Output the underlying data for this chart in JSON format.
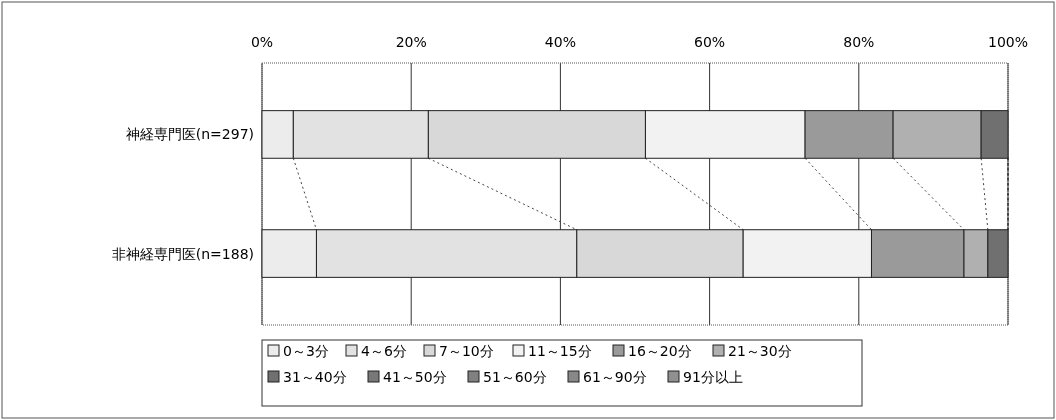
{
  "chart_data": {
    "type": "bar",
    "orientation": "horizontal",
    "stacked": true,
    "categories": [
      "神経専門医(n=297)",
      "非神経専門医(n=188)"
    ],
    "series": [
      {
        "name": "0～3分",
        "color": "#ececec",
        "values": [
          4.2,
          7.3
        ]
      },
      {
        "name": "4～6分",
        "color": "#e2e2e2",
        "values": [
          18.1,
          34.9
        ]
      },
      {
        "name": "7～10分",
        "color": "#d8d8d8",
        "values": [
          29.1,
          22.3
        ]
      },
      {
        "name": "11～15分",
        "color": "#f2f2f2",
        "values": [
          21.4,
          17.2
        ]
      },
      {
        "name": "16～20分",
        "color": "#9a9a9a",
        "values": [
          11.8,
          12.4
        ]
      },
      {
        "name": "21～30分",
        "color": "#b0b0b0",
        "values": [
          11.8,
          3.2
        ]
      },
      {
        "name": "31～40分",
        "color": "#707070",
        "values": [
          3.6,
          2.7
        ]
      },
      {
        "name": "41～50分",
        "color": "#787878",
        "values": [
          0,
          0
        ]
      },
      {
        "name": "51～60分",
        "color": "#808080",
        "values": [
          0,
          0
        ]
      },
      {
        "name": "61～90分",
        "color": "#888888",
        "values": [
          0,
          0
        ]
      },
      {
        "name": "91分以上",
        "color": "#909090",
        "values": [
          0,
          0
        ]
      }
    ],
    "xlim": [
      0,
      100
    ],
    "xticks": [
      {
        "value": 0,
        "label": "0%"
      },
      {
        "value": 20,
        "label": "20%"
      },
      {
        "value": 40,
        "label": "40%"
      },
      {
        "value": 60,
        "label": "60%"
      },
      {
        "value": 80,
        "label": "80%"
      },
      {
        "value": 100,
        "label": "100%"
      }
    ],
    "grid": "x",
    "legend": "bottom"
  }
}
